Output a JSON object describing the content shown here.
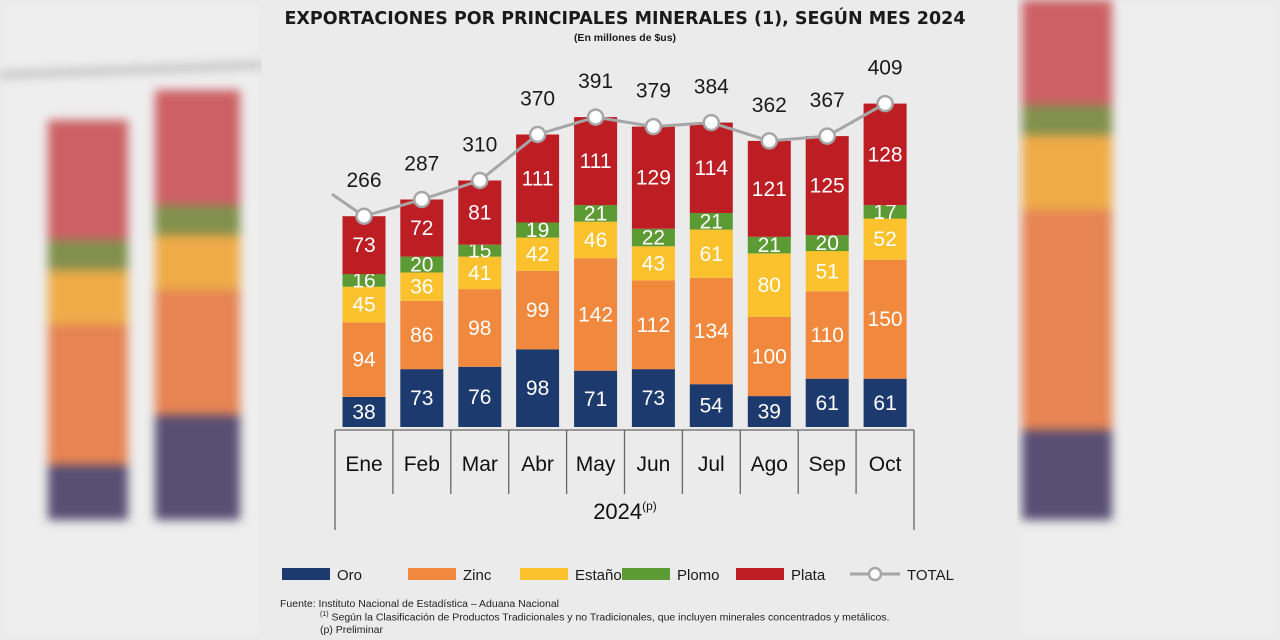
{
  "chart_data": {
    "type": "bar",
    "stacked": true,
    "title": "EXPORTACIONES POR PRINCIPALES MINERALES (1), SEGÚN MES 2024",
    "subtitle": "(En millones de $us)",
    "x_group_label": "2024",
    "x_group_label_sup": "(p)",
    "categories": [
      "Ene",
      "Feb",
      "Mar",
      "Abr",
      "May",
      "Jun",
      "Jul",
      "Ago",
      "Sep",
      "Oct"
    ],
    "series": [
      {
        "name": "Oro",
        "color": "#1d3a6e",
        "values": [
          38,
          73,
          76,
          98,
          71,
          73,
          54,
          39,
          61,
          61
        ]
      },
      {
        "name": "Zinc",
        "color": "#f0883d",
        "values": [
          94,
          86,
          98,
          99,
          142,
          112,
          134,
          100,
          110,
          150
        ]
      },
      {
        "name": "Estaño",
        "color": "#fbc22e",
        "values": [
          45,
          36,
          41,
          42,
          46,
          43,
          61,
          80,
          51,
          52
        ]
      },
      {
        "name": "Plomo",
        "color": "#5c9a34",
        "values": [
          16,
          20,
          15,
          19,
          21,
          22,
          21,
          21,
          20,
          17
        ]
      },
      {
        "name": "Plata",
        "color": "#bd1e24",
        "values": [
          73,
          72,
          81,
          111,
          111,
          129,
          114,
          121,
          125,
          128
        ]
      }
    ],
    "total": {
      "name": "TOTAL",
      "color": "#a6a6a6",
      "values": [
        266,
        287,
        310,
        370,
        391,
        379,
        384,
        362,
        367,
        409
      ]
    },
    "ylim": [
      0,
      420
    ],
    "grid": false,
    "legend": "bottom"
  },
  "footnotes": {
    "source": "Fuente: Instituto Nacional de Estadística – Aduana Nacional",
    "note1_mark": "(1)",
    "note1": " Según la Clasificación de Productos Tradicionales y no Tradicionales, que incluyen minerales concentrados y metálicos.",
    "note2": "(p) Preliminar"
  }
}
